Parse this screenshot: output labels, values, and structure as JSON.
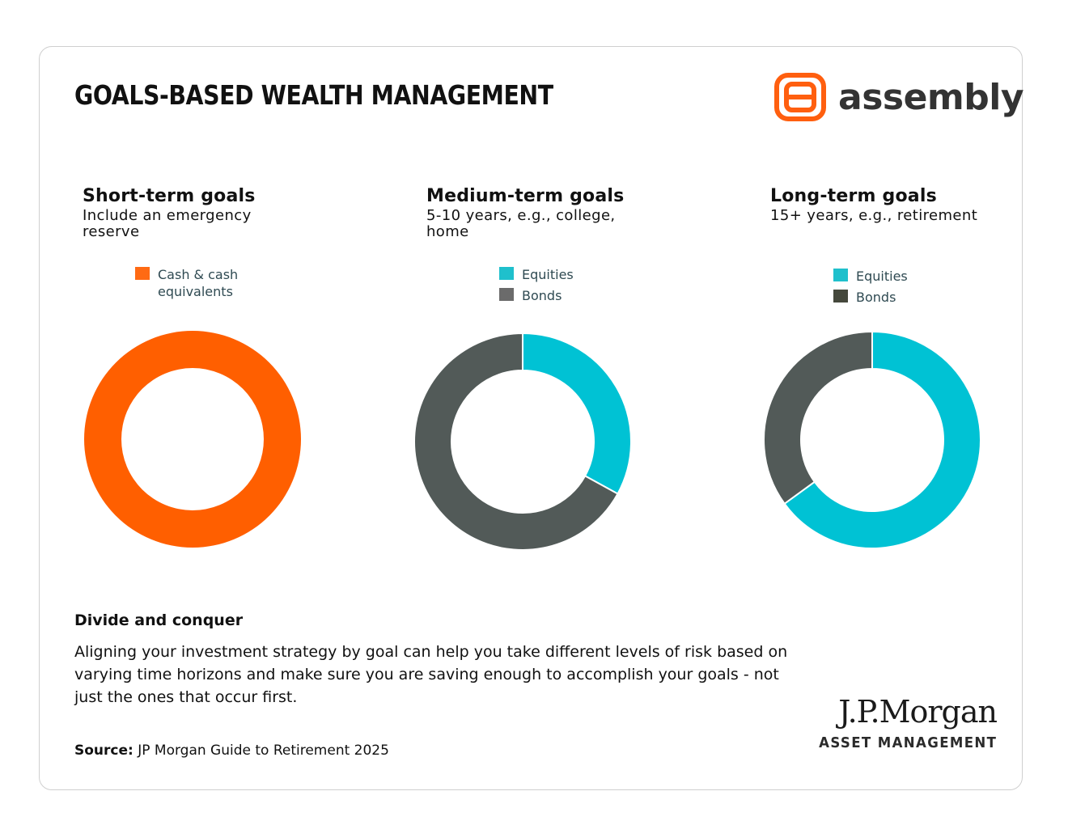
{
  "header": {
    "title": "GOALS-BASED WEALTH MANAGEMENT",
    "brand": {
      "name": "assembly",
      "icon": "assembly-logo-icon",
      "color": "#FF5F0F"
    }
  },
  "goals": [
    {
      "title": "Short-term goals",
      "subtitle": "Include an emergency reserve"
    },
    {
      "title": "Medium-term goals",
      "subtitle": "5-10 years, e.g., college, home"
    },
    {
      "title": "Long-term goals",
      "subtitle": "15+ years, e.g., retirement"
    }
  ],
  "chart_data": [
    {
      "type": "pie",
      "title": "Short-term goals",
      "legend": [
        "Cash & cash equivalents"
      ],
      "legend_position": "top",
      "series": [
        {
          "name": "Cash & cash equivalents",
          "value": 100,
          "color": "#FF5F00"
        }
      ]
    },
    {
      "type": "pie",
      "title": "Medium-term goals",
      "legend": [
        "Equities",
        "Bonds"
      ],
      "legend_position": "top",
      "series": [
        {
          "name": "Equities",
          "value": 33,
          "color": "#00C2D4"
        },
        {
          "name": "Bonds",
          "value": 67,
          "color": "#525A58"
        }
      ]
    },
    {
      "type": "pie",
      "title": "Long-term goals",
      "legend": [
        "Equities",
        "Bonds"
      ],
      "legend_position": "top",
      "series": [
        {
          "name": "Equities",
          "value": 65,
          "color": "#00C2D4"
        },
        {
          "name": "Bonds",
          "value": 35,
          "color": "#525A58"
        }
      ]
    }
  ],
  "legend_colors": {
    "cash": "#FF6A13",
    "equities": "#1FC0CC",
    "bonds_medium": "#6B6B6B",
    "bonds_long": "#45483C"
  },
  "footer": {
    "heading": "Divide and conquer",
    "body": "Aligning your investment strategy by goal can help you take different levels of risk based on varying time horizons and make sure you are saving enough to accomplish your goals - not just the ones that occur first.",
    "source_label": "Source:",
    "source_text": " JP Morgan Guide to Retirement 2025",
    "partner": {
      "name": "J.P.Morgan",
      "sub": "ASSET MANAGEMENT"
    }
  }
}
